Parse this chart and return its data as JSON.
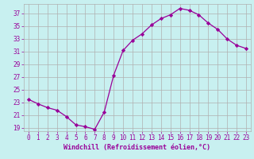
{
  "x": [
    0,
    1,
    2,
    3,
    4,
    5,
    6,
    7,
    8,
    9,
    10,
    11,
    12,
    13,
    14,
    15,
    16,
    17,
    18,
    19,
    20,
    21,
    22,
    23
  ],
  "y": [
    23.5,
    22.8,
    22.2,
    21.8,
    20.8,
    19.5,
    19.2,
    18.8,
    21.5,
    27.3,
    31.2,
    32.8,
    33.8,
    35.2,
    36.2,
    36.8,
    37.8,
    37.5,
    36.8,
    35.5,
    34.5,
    33.0,
    32.0,
    31.5
  ],
  "line_color": "#990099",
  "marker": "D",
  "marker_size": 2.2,
  "bg_color": "#c8f0f0",
  "grid_color": "#b0b0b0",
  "yticks": [
    19,
    21,
    23,
    25,
    27,
    29,
    31,
    33,
    35,
    37
  ],
  "xticks": [
    0,
    1,
    2,
    3,
    4,
    5,
    6,
    7,
    8,
    9,
    10,
    11,
    12,
    13,
    14,
    15,
    16,
    17,
    18,
    19,
    20,
    21,
    22,
    23
  ],
  "xlabel": "Windchill (Refroidissement éolien,°C)",
  "xlabel_color": "#990099",
  "tick_color": "#990099",
  "ylim": [
    18.5,
    38.5
  ],
  "xlim": [
    -0.5,
    23.5
  ],
  "tick_fontsize": 5.5,
  "xlabel_fontsize": 6.0
}
